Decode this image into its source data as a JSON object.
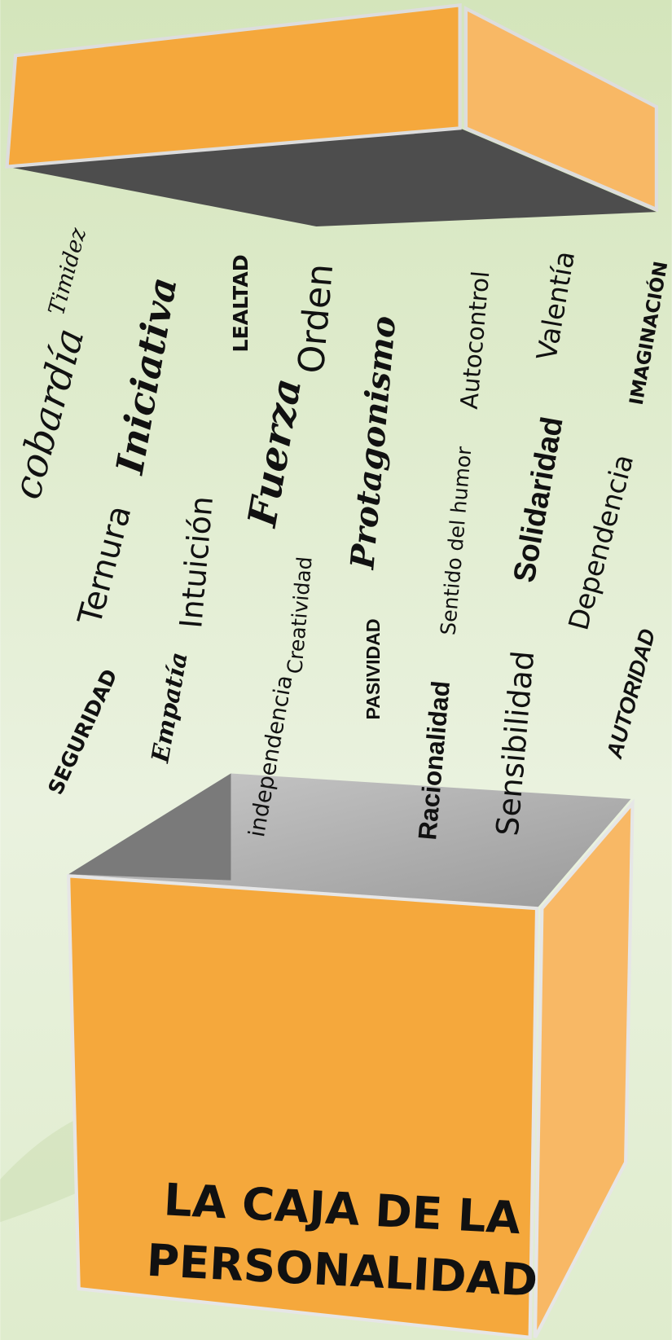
{
  "title": {
    "lines": [
      "LA CAJA DE LA",
      "PERSONALIDAD"
    ]
  },
  "words": [
    "Timidez",
    "cobardía",
    "Iniciativa",
    "LEALTAD",
    "Orden",
    "Fuerza",
    "Protagonismo",
    "Autocontrol",
    "Valentía",
    "IMAGINACIÓN",
    "Ternura",
    "Intuición",
    "Solidaridad",
    "Sentido del humor",
    "Dependencia",
    "Creatividad",
    "PASIVIDAD",
    "SEGURIDAD",
    "Empatía",
    "independencia",
    "Racionalidad",
    "Sensibilidad",
    "AUTORIDAD"
  ]
}
